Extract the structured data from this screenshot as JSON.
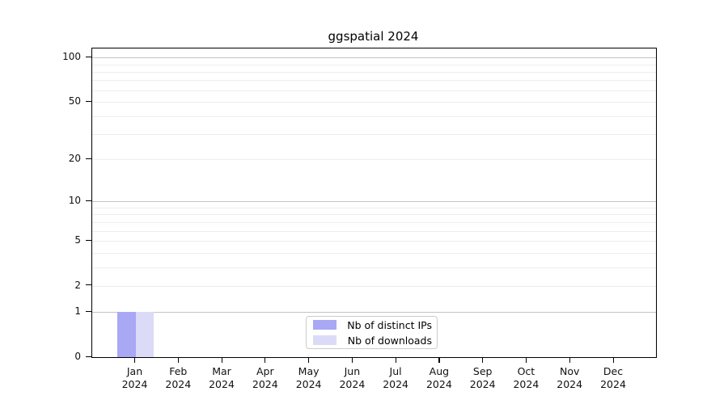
{
  "title": "ggspatial 2024",
  "colors": {
    "distinct_ips_bar": "#a8a8f4",
    "downloads_bar": "#dbdbf8",
    "grid_major": "#c3c3c3",
    "grid_minor": "#ededed",
    "axis": "#000000",
    "legend_border": "#cccccc"
  },
  "chart_data": {
    "type": "bar",
    "title": "ggspatial 2024",
    "xlabel": "",
    "ylabel": "",
    "yscale": "log1p",
    "ylim": [
      0,
      115
    ],
    "grid": "horizontal",
    "legend_position": "bottom-center-inside",
    "categories": [
      {
        "month": "Jan",
        "year": "2024"
      },
      {
        "month": "Feb",
        "year": "2024"
      },
      {
        "month": "Mar",
        "year": "2024"
      },
      {
        "month": "Apr",
        "year": "2024"
      },
      {
        "month": "May",
        "year": "2024"
      },
      {
        "month": "Jun",
        "year": "2024"
      },
      {
        "month": "Jul",
        "year": "2024"
      },
      {
        "month": "Aug",
        "year": "2024"
      },
      {
        "month": "Sep",
        "year": "2024"
      },
      {
        "month": "Oct",
        "year": "2024"
      },
      {
        "month": "Nov",
        "year": "2024"
      },
      {
        "month": "Dec",
        "year": "2024"
      }
    ],
    "series": [
      {
        "name": "Nb of distinct IPs",
        "color": "#a8a8f4",
        "values": [
          1,
          0,
          0,
          0,
          0,
          0,
          0,
          0,
          0,
          0,
          0,
          0
        ]
      },
      {
        "name": "Nb of downloads",
        "color": "#dbdbf8",
        "values": [
          1,
          0,
          0,
          0,
          0,
          0,
          0,
          0,
          0,
          0,
          0,
          0
        ]
      }
    ],
    "y_major_ticks": [
      0,
      1,
      2,
      5,
      10,
      20,
      50,
      100
    ],
    "y_major_gridlines": [
      1,
      10,
      100
    ],
    "y_minor_gridlines": [
      2,
      3,
      4,
      5,
      6,
      7,
      8,
      9,
      20,
      30,
      40,
      50,
      60,
      70,
      80,
      90
    ]
  }
}
